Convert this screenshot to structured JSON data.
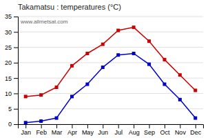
{
  "chart_data": {
    "type": "line",
    "title": "Takamatsu : temperatures (°C)",
    "categories": [
      "Jan",
      "Feb",
      "Mar",
      "Apr",
      "May",
      "Jun",
      "Jul",
      "Aug",
      "Sep",
      "Oct",
      "Nov",
      "Dec"
    ],
    "series": [
      {
        "color": "#cc0000",
        "marker": "square",
        "values": [
          9,
          9.5,
          12,
          19,
          23,
          26,
          30.5,
          31.5,
          27,
          21,
          16,
          11
        ]
      },
      {
        "color": "#0000cc",
        "marker": "square",
        "values": [
          0.5,
          1,
          2,
          9,
          13,
          18.5,
          22.5,
          23,
          19.5,
          13,
          8,
          2
        ]
      }
    ],
    "ylim": [
      0,
      35
    ],
    "yticks": [
      0,
      5,
      10,
      15,
      20,
      25,
      30,
      35
    ],
    "grid": true,
    "annotations": [
      "www.allmetsat.com"
    ]
  }
}
